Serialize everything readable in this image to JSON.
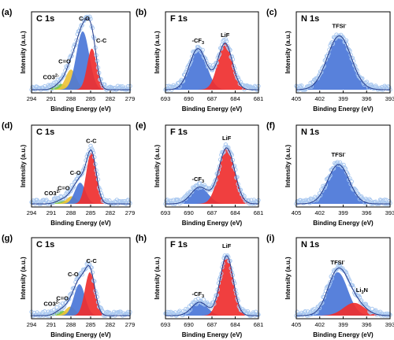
{
  "figure": {
    "panel_titles": [
      "C 1s",
      "F 1s",
      "N 1s"
    ],
    "xlabel": "Binding Energy (eV)",
    "ylabel": "Intensity (a.u.)"
  },
  "colors": {
    "raw_data": "#a9c8f0",
    "envelope": "#233a8a",
    "C-O": "#4a76d8",
    "C=O": "#ecc23a",
    "C-C": "#ef2f2f",
    "CO3": "#76c742",
    "CF3": "#4a76d8",
    "LiF": "#ef2f2f",
    "TFSI": "#4a76d8",
    "Li3N": "#ef2f2f"
  },
  "chart_data": [
    {
      "id": "a",
      "letter": "(a)",
      "element": "C 1s",
      "type": "area",
      "xlim": [
        294,
        279
      ],
      "xticks": [
        294,
        291,
        288,
        285,
        282,
        279
      ],
      "peaks": [
        {
          "name": "CO3",
          "label": "CO3",
          "sup": "2-",
          "center": 289.6,
          "fwhm": 2.0,
          "height": 0.08,
          "color": "#76c742"
        },
        {
          "name": "C=O",
          "label": "C=O",
          "center": 288.0,
          "fwhm": 1.9,
          "height": 0.27,
          "color": "#ecc23a"
        },
        {
          "name": "C-O",
          "label": "C-O",
          "center": 286.2,
          "fwhm": 2.3,
          "height": 0.78,
          "color": "#4a76d8"
        },
        {
          "name": "C-C",
          "label": "C-C",
          "center": 284.8,
          "fwhm": 1.7,
          "height": 0.55,
          "color": "#ef2f2f"
        }
      ]
    },
    {
      "id": "b",
      "letter": "(b)",
      "element": "F 1s",
      "type": "area",
      "xlim": [
        693,
        681
      ],
      "xticks": [
        693,
        690,
        687,
        684,
        681
      ],
      "peaks": [
        {
          "name": "CF3",
          "label": "-CF",
          "sub": "3",
          "center": 688.8,
          "fwhm": 2.6,
          "height": 0.55,
          "color": "#4a76d8"
        },
        {
          "name": "LiF",
          "label": "LiF",
          "center": 685.3,
          "fwhm": 2.2,
          "height": 0.62,
          "color": "#ef2f2f"
        }
      ]
    },
    {
      "id": "c",
      "letter": "(c)",
      "element": "N 1s",
      "type": "area",
      "xlim": [
        405,
        393
      ],
      "xticks": [
        405,
        402,
        399,
        396,
        393
      ],
      "peaks": [
        {
          "name": "TFSI",
          "label": "TFSI",
          "sup": "-",
          "center": 399.5,
          "fwhm": 3.6,
          "height": 0.72,
          "color": "#4a76d8"
        }
      ]
    },
    {
      "id": "d",
      "letter": "(d)",
      "element": "C 1s",
      "type": "area",
      "xlim": [
        294,
        279
      ],
      "xticks": [
        294,
        291,
        288,
        285,
        282,
        279
      ],
      "peaks": [
        {
          "name": "CO3",
          "label": "CO3",
          "sup": "2-",
          "center": 289.4,
          "fwhm": 2.0,
          "height": 0.05,
          "color": "#76c742"
        },
        {
          "name": "C=O",
          "label": "C=O",
          "center": 287.9,
          "fwhm": 1.8,
          "height": 0.1,
          "color": "#ecc23a"
        },
        {
          "name": "C-O",
          "label": "C-O",
          "center": 286.6,
          "fwhm": 1.9,
          "height": 0.28,
          "color": "#4a76d8"
        },
        {
          "name": "C-C",
          "label": "C-C",
          "center": 284.9,
          "fwhm": 1.8,
          "height": 0.68,
          "color": "#ef2f2f"
        }
      ]
    },
    {
      "id": "e",
      "letter": "(e)",
      "element": "F 1s",
      "type": "area",
      "xlim": [
        693,
        681
      ],
      "xticks": [
        693,
        690,
        687,
        684,
        681
      ],
      "peaks": [
        {
          "name": "CF3",
          "label": "-CF",
          "sub": "3",
          "center": 688.6,
          "fwhm": 2.6,
          "height": 0.22,
          "color": "#4a76d8"
        },
        {
          "name": "LiF",
          "label": "LiF",
          "center": 685.1,
          "fwhm": 2.4,
          "height": 0.74,
          "color": "#ef2f2f"
        }
      ]
    },
    {
      "id": "f",
      "letter": "(f)",
      "element": "N 1s",
      "type": "area",
      "xlim": [
        405,
        393
      ],
      "xticks": [
        405,
        402,
        399,
        396,
        393
      ],
      "peaks": [
        {
          "name": "TFSI",
          "label": "TFSI",
          "sup": "-",
          "center": 399.6,
          "fwhm": 3.2,
          "height": 0.52,
          "color": "#4a76d8"
        }
      ]
    },
    {
      "id": "g",
      "letter": "(g)",
      "element": "C 1s",
      "type": "area",
      "xlim": [
        294,
        279
      ],
      "xticks": [
        294,
        291,
        288,
        285,
        282,
        279
      ],
      "peaks": [
        {
          "name": "CO3",
          "label": "CO3",
          "sup": "2-",
          "center": 289.5,
          "fwhm": 2.0,
          "height": 0.07,
          "color": "#76c742"
        },
        {
          "name": "C=O",
          "label": "C=O",
          "center": 288.1,
          "fwhm": 1.8,
          "height": 0.12,
          "color": "#ecc23a"
        },
        {
          "name": "C-O",
          "label": "C-O",
          "center": 286.7,
          "fwhm": 2.0,
          "height": 0.42,
          "color": "#4a76d8"
        },
        {
          "name": "C-C",
          "label": "C-C",
          "center": 285.1,
          "fwhm": 1.8,
          "height": 0.58,
          "color": "#ef2f2f"
        }
      ]
    },
    {
      "id": "h",
      "letter": "(h)",
      "element": "F 1s",
      "type": "area",
      "xlim": [
        693,
        681
      ],
      "xticks": [
        693,
        690,
        687,
        684,
        681
      ],
      "peaks": [
        {
          "name": "CF3",
          "label": "-CF",
          "sub": "3",
          "center": 688.6,
          "fwhm": 2.4,
          "height": 0.18,
          "color": "#4a76d8"
        },
        {
          "name": "LiF",
          "label": "LiF",
          "center": 685.1,
          "fwhm": 2.0,
          "height": 0.8,
          "color": "#ef2f2f"
        }
      ]
    },
    {
      "id": "i",
      "letter": "(i)",
      "element": "N 1s",
      "type": "area",
      "xlim": [
        405,
        393
      ],
      "xticks": [
        405,
        402,
        399,
        396,
        393
      ],
      "peaks": [
        {
          "name": "TFSI",
          "label": "TFSI",
          "sup": "-",
          "center": 399.7,
          "fwhm": 3.0,
          "height": 0.58,
          "color": "#4a76d8"
        },
        {
          "name": "Li3N",
          "label": "Li",
          "sub": "3",
          "tail": "N",
          "center": 397.6,
          "fwhm": 3.2,
          "height": 0.17,
          "color": "#ef2f2f"
        }
      ]
    }
  ]
}
